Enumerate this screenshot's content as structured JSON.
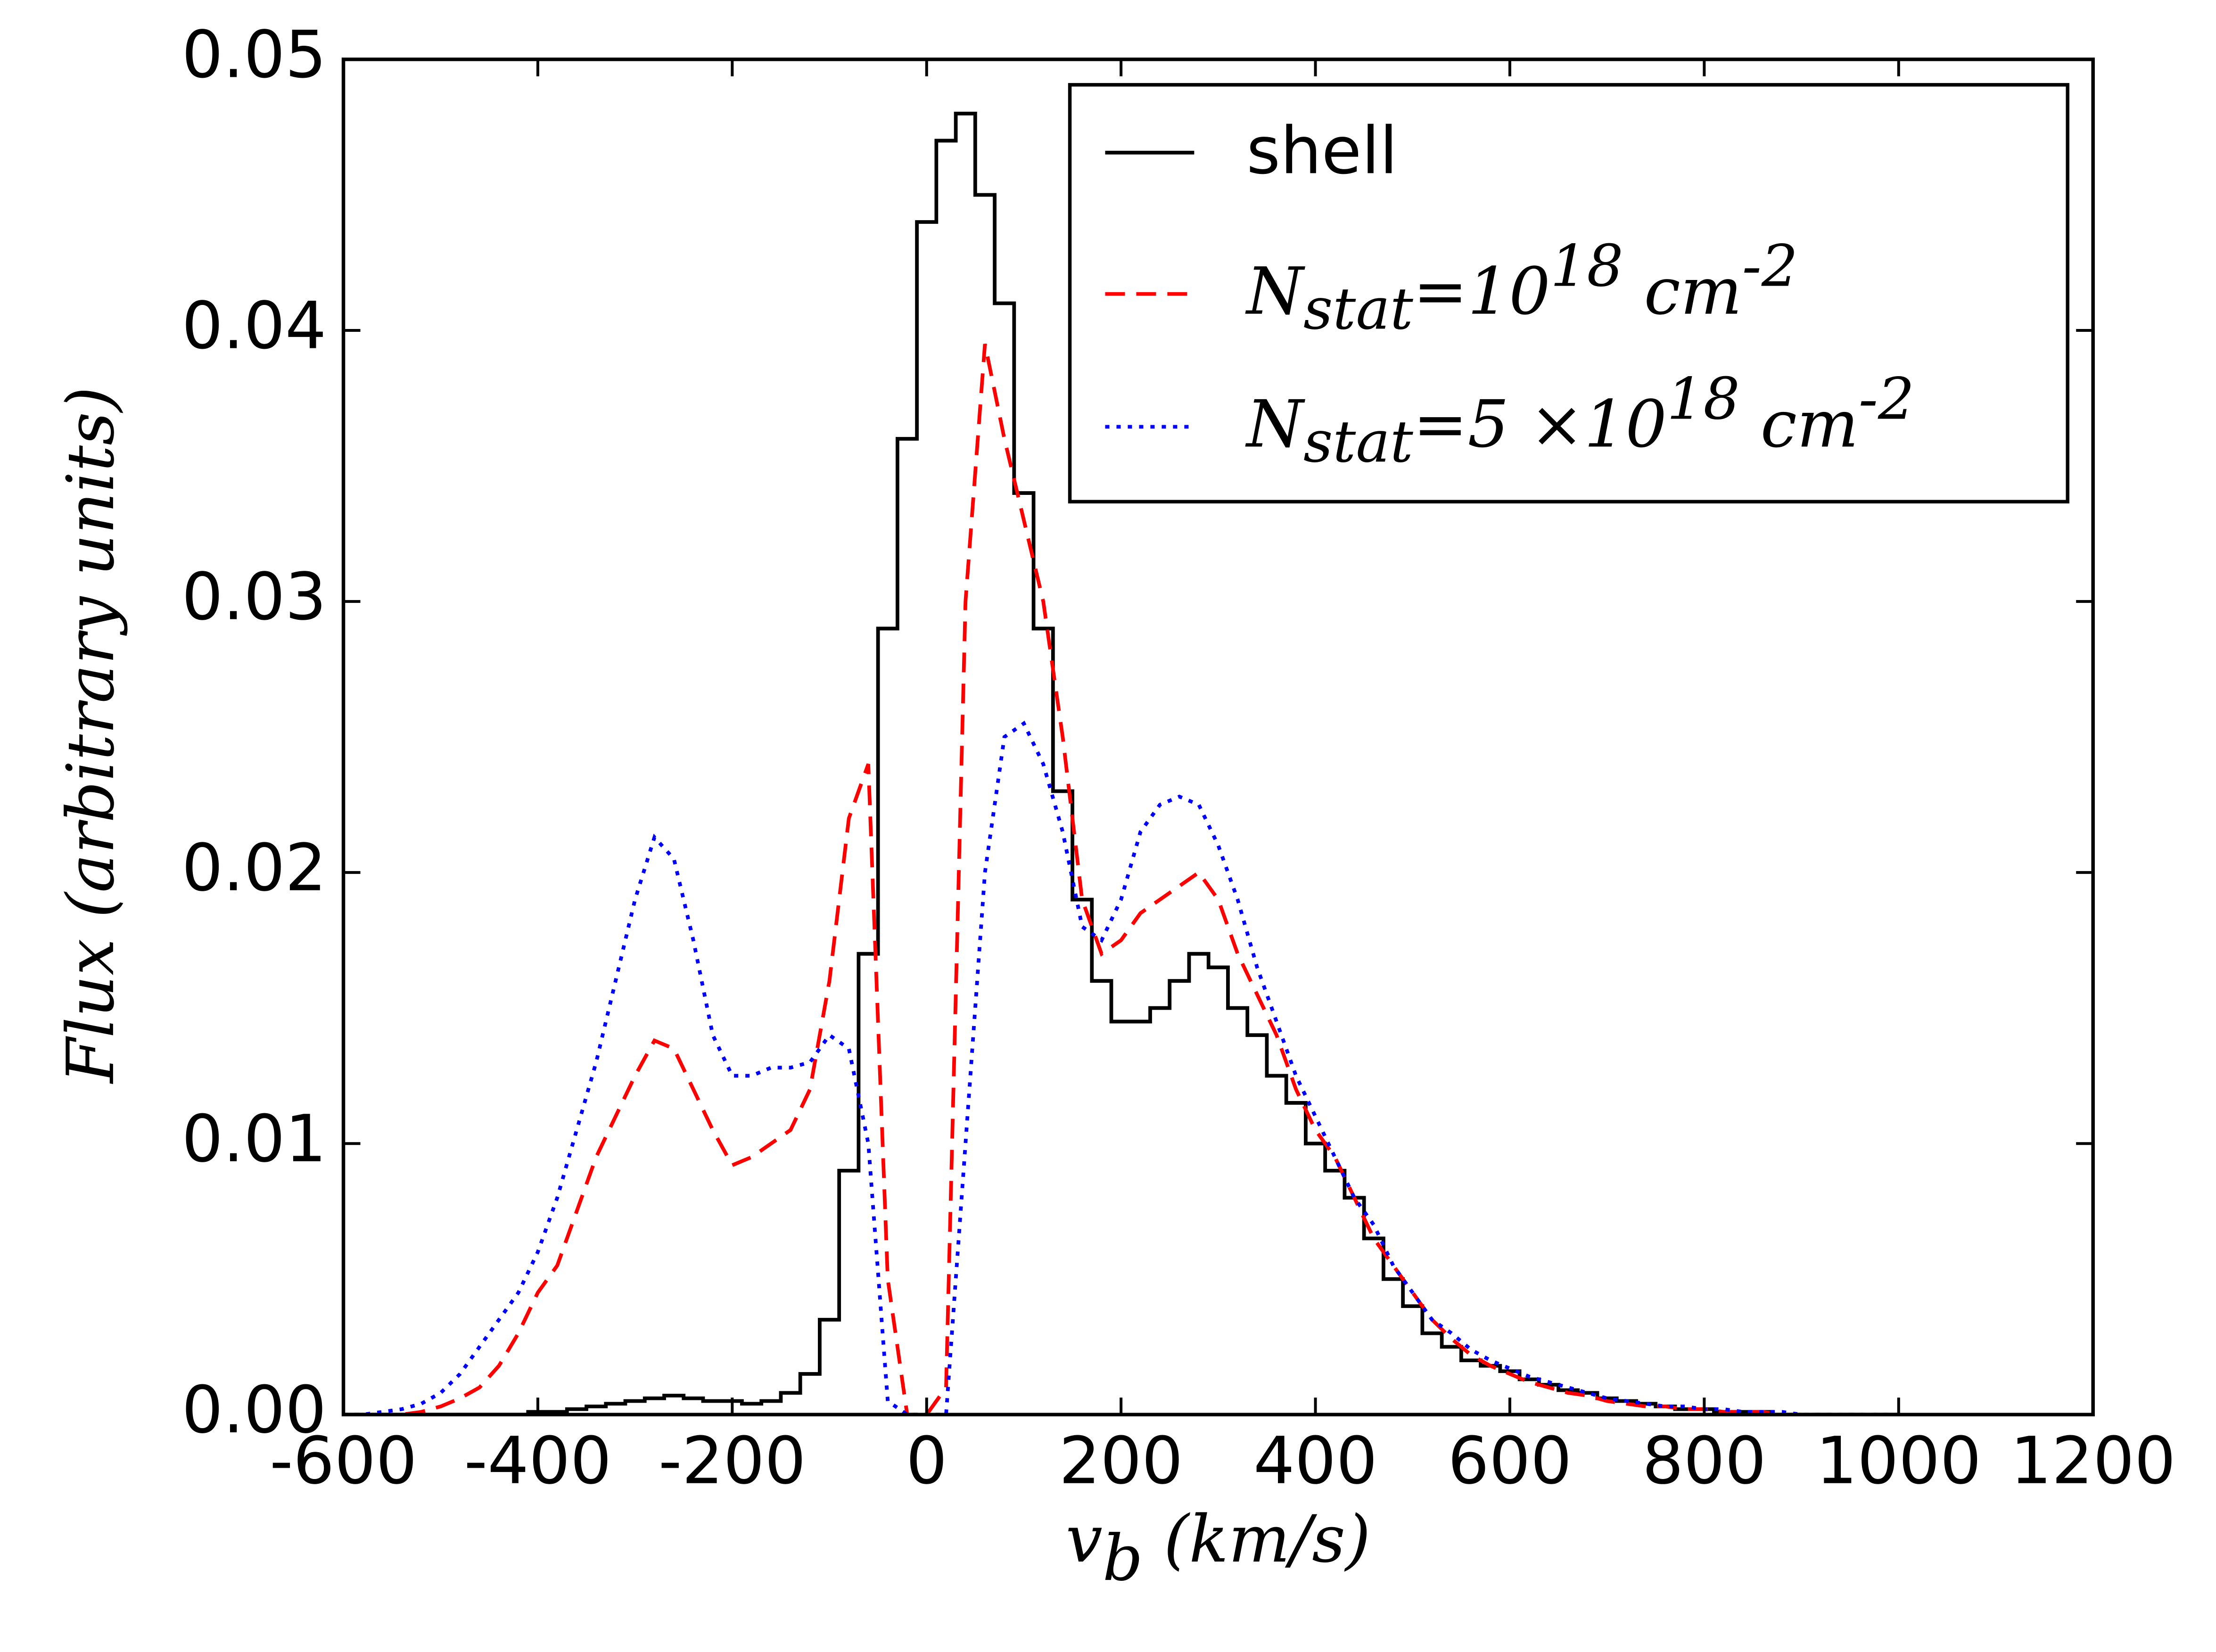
{
  "chart_data": {
    "type": "line",
    "xlabel": "v_{b} (km/s)",
    "ylabel": "Flux (arbitrary units)",
    "x": [
      -600,
      -580,
      -560,
      -540,
      -520,
      -500,
      -480,
      -460,
      -440,
      -420,
      -400,
      -380,
      -360,
      -340,
      -320,
      -300,
      -280,
      -260,
      -240,
      -220,
      -200,
      -180,
      -160,
      -140,
      -120,
      -100,
      -80,
      -60,
      -40,
      -20,
      0,
      20,
      40,
      60,
      80,
      100,
      120,
      140,
      160,
      180,
      200,
      220,
      240,
      260,
      280,
      300,
      320,
      340,
      360,
      380,
      400,
      420,
      440,
      460,
      480,
      500,
      520,
      540,
      560,
      580,
      600,
      620,
      640,
      660,
      680,
      700,
      720,
      740,
      760,
      780,
      800,
      820,
      840,
      860,
      880,
      900,
      920,
      940,
      960,
      980,
      1000
    ],
    "series": [
      {
        "name": "shell",
        "color": "#000000",
        "linestyle": "solid",
        "drawstyle": "steps",
        "values": [
          0,
          0,
          0,
          0,
          0,
          0,
          0,
          0,
          0,
          0,
          0.0001,
          0.0001,
          0.0002,
          0.0003,
          0.0004,
          0.0005,
          0.0006,
          0.0007,
          0.0006,
          0.0005,
          0.0005,
          0.0004,
          0.0005,
          0.0008,
          0.0015,
          0.0035,
          0.009,
          0.017,
          0.029,
          0.036,
          0.044,
          0.047,
          0.048,
          0.045,
          0.041,
          0.034,
          0.029,
          0.023,
          0.019,
          0.016,
          0.0145,
          0.0145,
          0.015,
          0.016,
          0.017,
          0.0165,
          0.015,
          0.014,
          0.0125,
          0.0115,
          0.01,
          0.009,
          0.008,
          0.0065,
          0.005,
          0.004,
          0.003,
          0.0025,
          0.002,
          0.0018,
          0.0016,
          0.0013,
          0.0011,
          0.0009,
          0.0008,
          0.0006,
          0.0005,
          0.0004,
          0.0003,
          0.0002,
          0.0002,
          0.0001,
          0.0001,
          0.0001,
          0,
          0,
          0,
          0,
          0,
          0,
          0
        ]
      },
      {
        "name": "N_{stat}=10^{18} cm^{-2}",
        "color": "#ff0000",
        "linestyle": "dashed",
        "drawstyle": "default",
        "values": [
          0,
          0,
          0,
          0,
          0.0001,
          0.0003,
          0.0006,
          0.001,
          0.0018,
          0.003,
          0.0045,
          0.0055,
          0.0075,
          0.0095,
          0.011,
          0.0125,
          0.0138,
          0.0135,
          0.012,
          0.0105,
          0.0092,
          0.0095,
          0.01,
          0.0105,
          0.012,
          0.016,
          0.022,
          0.024,
          0.005,
          0,
          0,
          0.001,
          0.03,
          0.0395,
          0.036,
          0.033,
          0.03,
          0.025,
          0.019,
          0.017,
          0.0175,
          0.0185,
          0.019,
          0.0195,
          0.02,
          0.019,
          0.017,
          0.0155,
          0.014,
          0.012,
          0.0105,
          0.0095,
          0.008,
          0.0065,
          0.0055,
          0.0045,
          0.0035,
          0.0028,
          0.0022,
          0.0018,
          0.0015,
          0.0012,
          0.001,
          0.0008,
          0.0007,
          0.0005,
          0.0004,
          0.0003,
          0.0003,
          0.0002,
          0.0002,
          0.0001,
          0.0001,
          0.0001,
          0,
          0,
          0,
          0,
          0,
          0,
          0
        ]
      },
      {
        "name": "N_{stat}=5 ×10^{18} cm^{-2}",
        "color": "#0000ff",
        "linestyle": "dotted",
        "drawstyle": "default",
        "values": [
          0,
          0,
          0.0001,
          0.0002,
          0.0004,
          0.0008,
          0.0015,
          0.0025,
          0.0035,
          0.0045,
          0.006,
          0.008,
          0.0105,
          0.013,
          0.016,
          0.019,
          0.0213,
          0.0205,
          0.0175,
          0.014,
          0.0125,
          0.0125,
          0.0128,
          0.0128,
          0.013,
          0.014,
          0.0135,
          0.01,
          0.0005,
          0,
          0,
          0,
          0.01,
          0.02,
          0.025,
          0.0255,
          0.024,
          0.0215,
          0.018,
          0.0175,
          0.019,
          0.0215,
          0.0225,
          0.0228,
          0.0225,
          0.021,
          0.019,
          0.0165,
          0.0145,
          0.0125,
          0.011,
          0.0095,
          0.008,
          0.007,
          0.0055,
          0.0045,
          0.0035,
          0.003,
          0.0024,
          0.002,
          0.0017,
          0.0014,
          0.0012,
          0.001,
          0.0008,
          0.0006,
          0.0005,
          0.0004,
          0.0003,
          0.0003,
          0.0002,
          0.0002,
          0.0001,
          0.0001,
          0.0001,
          0,
          0,
          0,
          0,
          0,
          0
        ]
      }
    ],
    "xlim": [
      -600,
      1200
    ],
    "xticks": [
      -600,
      -400,
      -200,
      0,
      200,
      400,
      600,
      800,
      1000,
      1200
    ],
    "ylim": [
      0,
      0.05
    ],
    "yticks": [
      {
        "value": 0,
        "label": "0.00"
      },
      0.01,
      0.02,
      0.03,
      0.04,
      0.05
    ],
    "grid": false,
    "legend": "upper right"
  }
}
